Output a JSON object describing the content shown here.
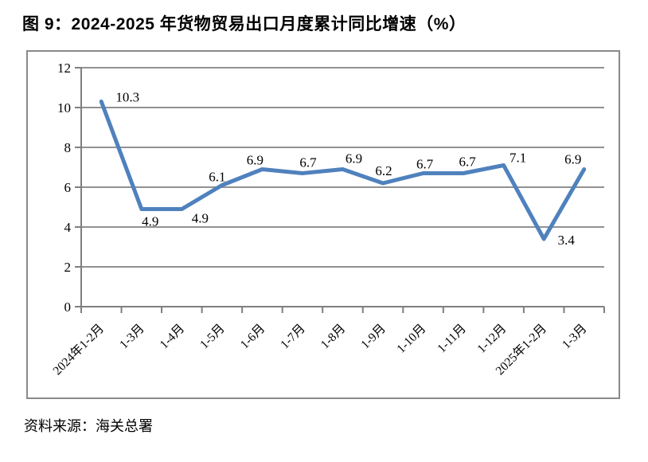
{
  "header": {
    "title": "图 9：2024-2025 年货物贸易出口月度累计同比增速（%）"
  },
  "source": {
    "text": "资料来源：海关总署"
  },
  "chart_data": {
    "type": "line",
    "title": "图 9：2024-2025 年货物贸易出口月度累计同比增速（%）",
    "categories": [
      "2024年1-2月",
      "1-3月",
      "1-4月",
      "1-5月",
      "1-6月",
      "1-7月",
      "1-8月",
      "1-9月",
      "1-10月",
      "1-11月",
      "1-12月",
      "2025年1-2月",
      "1-3月"
    ],
    "values": [
      10.3,
      4.9,
      4.9,
      6.1,
      6.9,
      6.7,
      6.9,
      6.2,
      6.7,
      6.7,
      7.1,
      3.4,
      6.9
    ],
    "data_labels": [
      10.3,
      4.9,
      4.9,
      6.1,
      6.9,
      6.7,
      6.9,
      6.2,
      6.7,
      6.7,
      7.1,
      3.4,
      6.9
    ],
    "xlabel": "",
    "ylabel": "",
    "ylim": [
      0,
      12
    ],
    "yticks": [
      0,
      2,
      4,
      6,
      8,
      10,
      12
    ],
    "grid": "horizontal",
    "legend": "none",
    "line_color": "#4F81BD",
    "grid_color": "#919191",
    "axis_color": "#7f7f7f",
    "source": "资料来源：海关总署"
  }
}
